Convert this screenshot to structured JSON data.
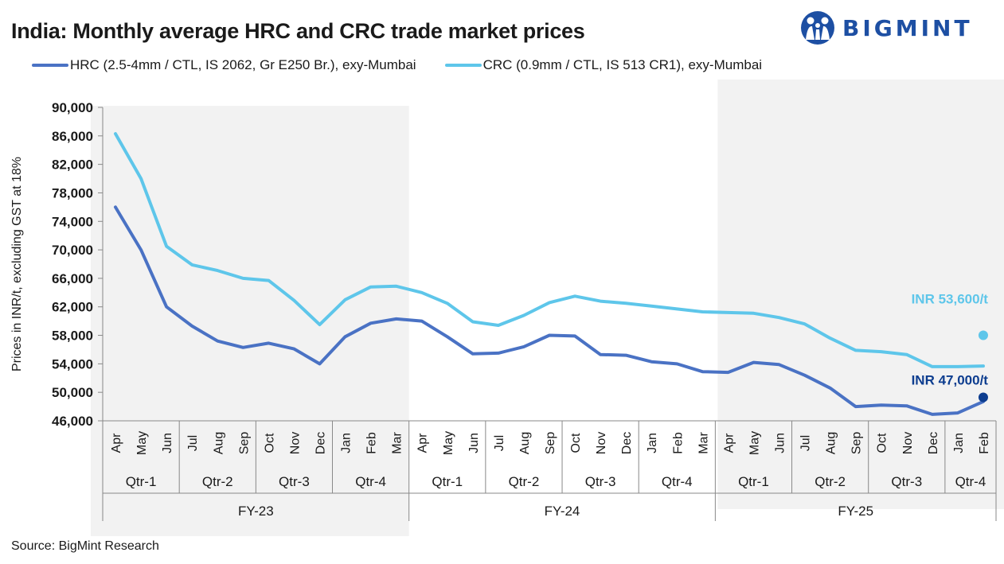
{
  "header": {
    "title": "India: Monthly average HRC and CRC trade market prices",
    "brand": "BIGMINT"
  },
  "footer": {
    "source": "Source: BigMint Research"
  },
  "colors": {
    "hrc": "#4a72c4",
    "crc": "#5ec6ea",
    "hrc_annotation": "#0d3d8f",
    "crc_annotation": "#5ec6ea",
    "shade": "#f2f2f2",
    "brand": "#1d4fa3"
  },
  "chart_data": {
    "type": "line",
    "title": "India: Monthly average HRC and CRC trade market prices",
    "ylabel": "Prices in INR/t, excluding GST at 18%",
    "ylim": [
      46000,
      90000
    ],
    "yticks": [
      46000,
      50000,
      54000,
      58000,
      62000,
      66000,
      70000,
      74000,
      78000,
      82000,
      86000,
      90000
    ],
    "ytick_labels": [
      "46,000",
      "50,000",
      "54,000",
      "58,000",
      "62,000",
      "66,000",
      "70,000",
      "74,000",
      "78,000",
      "82,000",
      "86,000",
      "90,000"
    ],
    "categories": [
      "Apr",
      "May",
      "Jun",
      "Jul",
      "Aug",
      "Sep",
      "Oct",
      "Nov",
      "Dec",
      "Jan",
      "Feb",
      "Mar",
      "Apr",
      "May",
      "Jun",
      "Jul",
      "Aug",
      "Sep",
      "Oct",
      "Nov",
      "Dec",
      "Jan",
      "Feb",
      "Mar",
      "Apr",
      "May",
      "Jun",
      "Jul",
      "Aug",
      "Sep",
      "Oct",
      "Nov",
      "Dec",
      "Jan",
      "Feb"
    ],
    "quarters": [
      {
        "label": "Qtr-1",
        "span": 3
      },
      {
        "label": "Qtr-2",
        "span": 3
      },
      {
        "label": "Qtr-3",
        "span": 3
      },
      {
        "label": "Qtr-4",
        "span": 3
      },
      {
        "label": "Qtr-1",
        "span": 3
      },
      {
        "label": "Qtr-2",
        "span": 3
      },
      {
        "label": "Qtr-3",
        "span": 3
      },
      {
        "label": "Qtr-4",
        "span": 3
      },
      {
        "label": "Qtr-1",
        "span": 3
      },
      {
        "label": "Qtr-2",
        "span": 3
      },
      {
        "label": "Qtr-3",
        "span": 3
      },
      {
        "label": "Qtr-4",
        "span": 2
      }
    ],
    "fiscal_years": [
      {
        "label": "FY-23",
        "span": 12,
        "shaded": true
      },
      {
        "label": "FY-24",
        "span": 12,
        "shaded": false
      },
      {
        "label": "FY-25",
        "span": 11,
        "shaded": true
      }
    ],
    "series": [
      {
        "name": "HRC (2.5-4mm / CTL, IS 2062, Gr E250 Br.), exy-Mumbai",
        "color": "#4a72c4",
        "values": [
          76000,
          70000,
          62000,
          59300,
          57200,
          56300,
          56900,
          56100,
          54000,
          57800,
          59700,
          60300,
          60000,
          57800,
          55400,
          55500,
          56400,
          58000,
          57900,
          55300,
          55200,
          54300,
          54000,
          52900,
          52800,
          54200,
          53900,
          52400,
          50600,
          48000,
          48200,
          48100,
          46900,
          47100,
          48700
        ]
      },
      {
        "name": "CRC (0.9mm / CTL, IS 513 CR1), exy-Mumbai",
        "color": "#5ec6ea",
        "values": [
          86300,
          80000,
          70500,
          67900,
          67100,
          66000,
          65700,
          62900,
          59500,
          63000,
          64800,
          64900,
          64000,
          62500,
          59900,
          59400,
          60800,
          62600,
          63500,
          62800,
          62500,
          62100,
          61700,
          61300,
          61200,
          61100,
          60500,
          59600,
          57600,
          55900,
          55700,
          55300,
          53600,
          53600,
          53700
        ]
      }
    ],
    "annotations": [
      {
        "text": "INR 53,600/t",
        "value": 58000,
        "series": "CRC"
      },
      {
        "text": "INR 47,000/t",
        "value": 49300,
        "series": "HRC"
      }
    ],
    "grid": false,
    "legend_position": "top"
  }
}
